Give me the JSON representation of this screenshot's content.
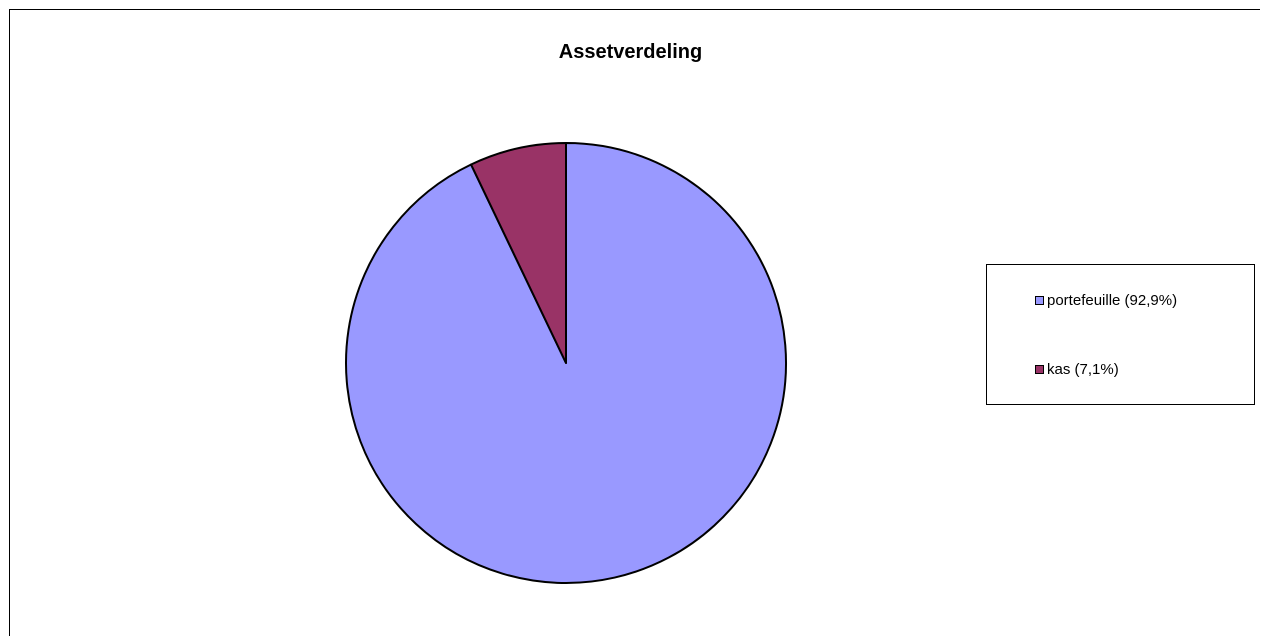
{
  "chart_data": {
    "type": "pie",
    "title": "Assetverdeling",
    "slices": [
      {
        "label": "portefeuille (92,9%)",
        "value": 92.9,
        "color": "#9999ff"
      },
      {
        "label": "kas (7,1%)",
        "value": 7.1,
        "color": "#993366"
      }
    ],
    "legend_position": "right"
  }
}
